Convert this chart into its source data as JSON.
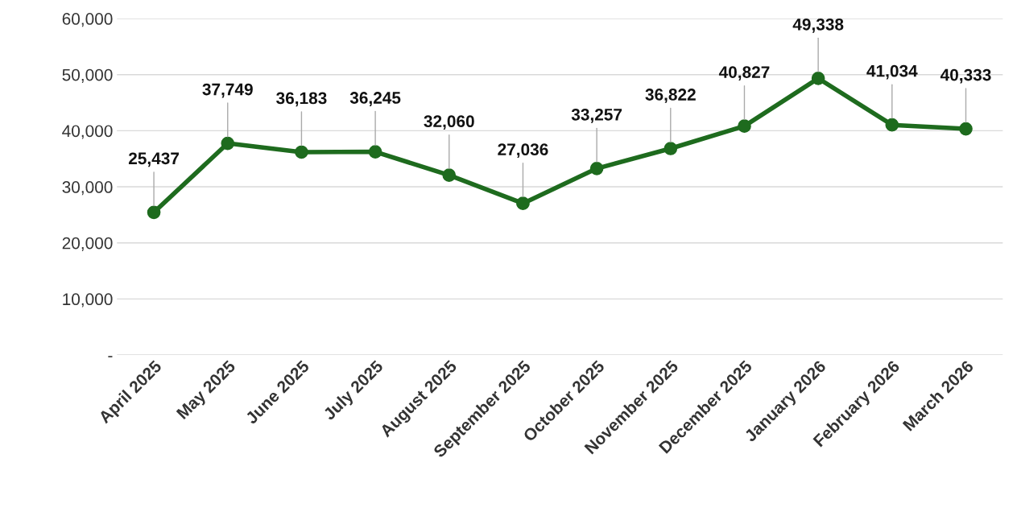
{
  "chart_data": {
    "type": "line",
    "categories": [
      "April 2025",
      "May 2025",
      "June 2025",
      "July 2025",
      "August 2025",
      "September 2025",
      "October 2025",
      "November 2025",
      "December 2025",
      "January 2026",
      "February 2026",
      "March 2026"
    ],
    "series": [
      {
        "color": "#1e6b1e",
        "values": [
          25437,
          37749,
          36183,
          36245,
          32060,
          27036,
          33257,
          36822,
          40827,
          49338,
          41034,
          40333
        ],
        "value_labels": [
          "25,437",
          "37,749",
          "36,183",
          "36,245",
          "32,060",
          "27,036",
          "33,257",
          "36,822",
          "40,827",
          "49,338",
          "41,034",
          "40,333"
        ]
      }
    ],
    "ylim": [
      0,
      60000
    ],
    "yticks": [
      {
        "value": 0,
        "label": "-"
      },
      {
        "value": 10000,
        "label": "10,000"
      },
      {
        "value": 20000,
        "label": "20,000"
      },
      {
        "value": 30000,
        "label": "30,000"
      },
      {
        "value": 40000,
        "label": "40,000"
      },
      {
        "value": 50000,
        "label": "50,000"
      },
      {
        "value": 60000,
        "label": "60,000"
      }
    ],
    "grid": "y",
    "marker": "circle",
    "line_style": "solid",
    "legend": false
  }
}
